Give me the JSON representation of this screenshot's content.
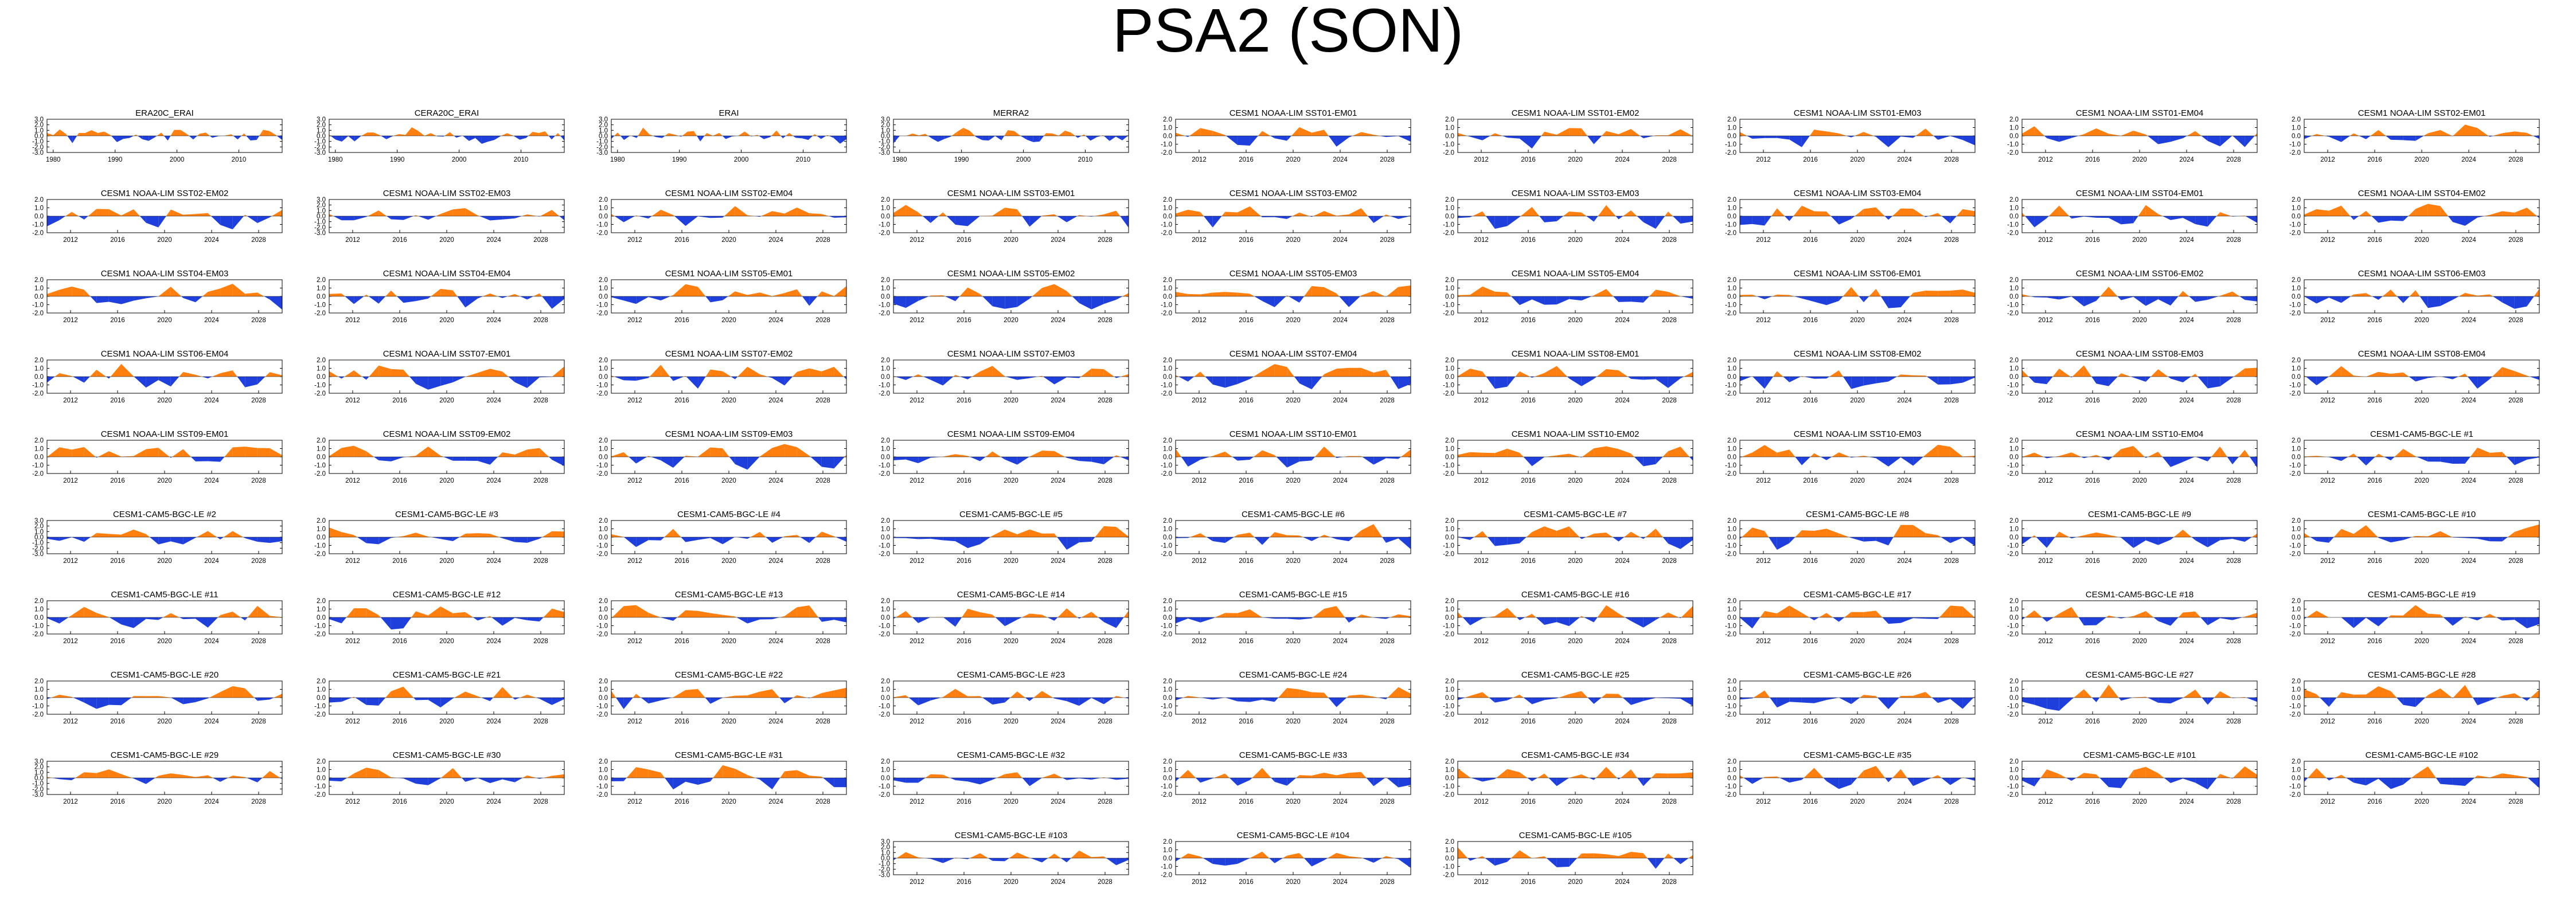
{
  "page": {
    "title": "PSA2 (SON)"
  },
  "colors": {
    "positive": "#ff7f0e",
    "negative": "#1f3fdd",
    "axis": "#000000"
  },
  "chart_data": {
    "type": "area",
    "description_axis": "each panel: SON-season PSA2 index time series, anomalies above zero filled orange, below zero filled blue",
    "ylim": [
      -2.0,
      2.0
    ],
    "yticks": [
      "2.0",
      "1.0",
      "0.0",
      "-1.0",
      "-2.0"
    ],
    "ylim_alt": [
      -3.0,
      3.0
    ],
    "yticks_alt": [
      "3.0",
      "2.0",
      "1.0",
      "0.0",
      "-1.0",
      "-2.0",
      "-3.0"
    ],
    "xticks_reanalysis": [
      "1980",
      "1990",
      "2000",
      "2010"
    ],
    "xticks_model": [
      "2012",
      "2016",
      "2020",
      "2024",
      "2028"
    ],
    "panels": [
      {
        "title": "ERA20C_ERAI",
        "xkind": "reanalysis",
        "ykind": "alt",
        "seed": 1
      },
      {
        "title": "CERA20C_ERAI",
        "xkind": "reanalysis",
        "ykind": "alt",
        "seed": 2
      },
      {
        "title": "ERAI",
        "xkind": "reanalysis",
        "ykind": "alt",
        "seed": 3
      },
      {
        "title": "MERRA2",
        "xkind": "reanalysis",
        "ykind": "alt",
        "seed": 4
      },
      {
        "title": "CESM1 NOAA-LIM SST01-EM01",
        "xkind": "model",
        "ykind": "std",
        "seed": 5
      },
      {
        "title": "CESM1 NOAA-LIM SST01-EM02",
        "xkind": "model",
        "ykind": "std",
        "seed": 6
      },
      {
        "title": "CESM1 NOAA-LIM SST01-EM03",
        "xkind": "model",
        "ykind": "std",
        "seed": 7
      },
      {
        "title": "CESM1 NOAA-LIM SST01-EM04",
        "xkind": "model",
        "ykind": "std",
        "seed": 8
      },
      {
        "title": "CESM1 NOAA-LIM SST02-EM01",
        "xkind": "model",
        "ykind": "std",
        "seed": 9
      },
      {
        "title": "CESM1 NOAA-LIM SST02-EM02",
        "xkind": "model",
        "ykind": "std",
        "seed": 10
      },
      {
        "title": "CESM1 NOAA-LIM SST02-EM03",
        "xkind": "model",
        "ykind": "alt",
        "seed": 11
      },
      {
        "title": "CESM1 NOAA-LIM SST02-EM04",
        "xkind": "model",
        "ykind": "std",
        "seed": 12
      },
      {
        "title": "CESM1 NOAA-LIM SST03-EM01",
        "xkind": "model",
        "ykind": "std",
        "seed": 13
      },
      {
        "title": "CESM1 NOAA-LIM SST03-EM02",
        "xkind": "model",
        "ykind": "std",
        "seed": 14
      },
      {
        "title": "CESM1 NOAA-LIM SST03-EM03",
        "xkind": "model",
        "ykind": "std",
        "seed": 15
      },
      {
        "title": "CESM1 NOAA-LIM SST03-EM04",
        "xkind": "model",
        "ykind": "std",
        "seed": 16
      },
      {
        "title": "CESM1 NOAA-LIM SST04-EM01",
        "xkind": "model",
        "ykind": "std",
        "seed": 17
      },
      {
        "title": "CESM1 NOAA-LIM SST04-EM02",
        "xkind": "model",
        "ykind": "std",
        "seed": 18
      },
      {
        "title": "CESM1 NOAA-LIM SST04-EM03",
        "xkind": "model",
        "ykind": "std",
        "seed": 19
      },
      {
        "title": "CESM1 NOAA-LIM SST04-EM04",
        "xkind": "model",
        "ykind": "std",
        "seed": 20
      },
      {
        "title": "CESM1 NOAA-LIM SST05-EM01",
        "xkind": "model",
        "ykind": "std",
        "seed": 21
      },
      {
        "title": "CESM1 NOAA-LIM SST05-EM02",
        "xkind": "model",
        "ykind": "std",
        "seed": 22
      },
      {
        "title": "CESM1 NOAA-LIM SST05-EM03",
        "xkind": "model",
        "ykind": "std",
        "seed": 23
      },
      {
        "title": "CESM1 NOAA-LIM SST05-EM04",
        "xkind": "model",
        "ykind": "std",
        "seed": 24
      },
      {
        "title": "CESM1 NOAA-LIM SST06-EM01",
        "xkind": "model",
        "ykind": "std",
        "seed": 25
      },
      {
        "title": "CESM1 NOAA-LIM SST06-EM02",
        "xkind": "model",
        "ykind": "std",
        "seed": 26
      },
      {
        "title": "CESM1 NOAA-LIM SST06-EM03",
        "xkind": "model",
        "ykind": "std",
        "seed": 27
      },
      {
        "title": "CESM1 NOAA-LIM SST06-EM04",
        "xkind": "model",
        "ykind": "std",
        "seed": 28
      },
      {
        "title": "CESM1 NOAA-LIM SST07-EM01",
        "xkind": "model",
        "ykind": "std",
        "seed": 29
      },
      {
        "title": "CESM1 NOAA-LIM SST07-EM02",
        "xkind": "model",
        "ykind": "std",
        "seed": 30
      },
      {
        "title": "CESM1 NOAA-LIM SST07-EM03",
        "xkind": "model",
        "ykind": "std",
        "seed": 31
      },
      {
        "title": "CESM1 NOAA-LIM SST07-EM04",
        "xkind": "model",
        "ykind": "std",
        "seed": 32
      },
      {
        "title": "CESM1 NOAA-LIM SST08-EM01",
        "xkind": "model",
        "ykind": "std",
        "seed": 33
      },
      {
        "title": "CESM1 NOAA-LIM SST08-EM02",
        "xkind": "model",
        "ykind": "std",
        "seed": 34
      },
      {
        "title": "CESM1 NOAA-LIM SST08-EM03",
        "xkind": "model",
        "ykind": "std",
        "seed": 35
      },
      {
        "title": "CESM1 NOAA-LIM SST08-EM04",
        "xkind": "model",
        "ykind": "std",
        "seed": 36
      },
      {
        "title": "CESM1 NOAA-LIM SST09-EM01",
        "xkind": "model",
        "ykind": "std",
        "seed": 37
      },
      {
        "title": "CESM1 NOAA-LIM SST09-EM02",
        "xkind": "model",
        "ykind": "std",
        "seed": 38
      },
      {
        "title": "CESM1 NOAA-LIM SST09-EM03",
        "xkind": "model",
        "ykind": "std",
        "seed": 39
      },
      {
        "title": "CESM1 NOAA-LIM SST09-EM04",
        "xkind": "model",
        "ykind": "std",
        "seed": 40
      },
      {
        "title": "CESM1 NOAA-LIM SST10-EM01",
        "xkind": "model",
        "ykind": "std",
        "seed": 41
      },
      {
        "title": "CESM1 NOAA-LIM SST10-EM02",
        "xkind": "model",
        "ykind": "std",
        "seed": 42
      },
      {
        "title": "CESM1 NOAA-LIM SST10-EM03",
        "xkind": "model",
        "ykind": "std",
        "seed": 43
      },
      {
        "title": "CESM1 NOAA-LIM SST10-EM04",
        "xkind": "model",
        "ykind": "std",
        "seed": 44
      },
      {
        "title": "CESM1-CAM5-BGC-LE #1",
        "xkind": "model",
        "ykind": "std",
        "seed": 45
      },
      {
        "title": "CESM1-CAM5-BGC-LE #2",
        "xkind": "model",
        "ykind": "alt",
        "seed": 46
      },
      {
        "title": "CESM1-CAM5-BGC-LE #3",
        "xkind": "model",
        "ykind": "std",
        "seed": 47
      },
      {
        "title": "CESM1-CAM5-BGC-LE #4",
        "xkind": "model",
        "ykind": "std",
        "seed": 48
      },
      {
        "title": "CESM1-CAM5-BGC-LE #5",
        "xkind": "model",
        "ykind": "std",
        "seed": 49
      },
      {
        "title": "CESM1-CAM5-BGC-LE #6",
        "xkind": "model",
        "ykind": "std",
        "seed": 50
      },
      {
        "title": "CESM1-CAM5-BGC-LE #7",
        "xkind": "model",
        "ykind": "std",
        "seed": 51
      },
      {
        "title": "CESM1-CAM5-BGC-LE #8",
        "xkind": "model",
        "ykind": "std",
        "seed": 52
      },
      {
        "title": "CESM1-CAM5-BGC-LE #9",
        "xkind": "model",
        "ykind": "std",
        "seed": 53
      },
      {
        "title": "CESM1-CAM5-BGC-LE #10",
        "xkind": "model",
        "ykind": "std",
        "seed": 54
      },
      {
        "title": "CESM1-CAM5-BGC-LE #11",
        "xkind": "model",
        "ykind": "std",
        "seed": 55
      },
      {
        "title": "CESM1-CAM5-BGC-LE #12",
        "xkind": "model",
        "ykind": "std",
        "seed": 56
      },
      {
        "title": "CESM1-CAM5-BGC-LE #13",
        "xkind": "model",
        "ykind": "std",
        "seed": 57
      },
      {
        "title": "CESM1-CAM5-BGC-LE #14",
        "xkind": "model",
        "ykind": "std",
        "seed": 58
      },
      {
        "title": "CESM1-CAM5-BGC-LE #15",
        "xkind": "model",
        "ykind": "std",
        "seed": 59
      },
      {
        "title": "CESM1-CAM5-BGC-LE #16",
        "xkind": "model",
        "ykind": "std",
        "seed": 60
      },
      {
        "title": "CESM1-CAM5-BGC-LE #17",
        "xkind": "model",
        "ykind": "std",
        "seed": 61
      },
      {
        "title": "CESM1-CAM5-BGC-LE #18",
        "xkind": "model",
        "ykind": "std",
        "seed": 62
      },
      {
        "title": "CESM1-CAM5-BGC-LE #19",
        "xkind": "model",
        "ykind": "std",
        "seed": 63
      },
      {
        "title": "CESM1-CAM5-BGC-LE #20",
        "xkind": "model",
        "ykind": "std",
        "seed": 64
      },
      {
        "title": "CESM1-CAM5-BGC-LE #21",
        "xkind": "model",
        "ykind": "std",
        "seed": 65
      },
      {
        "title": "CESM1-CAM5-BGC-LE #22",
        "xkind": "model",
        "ykind": "std",
        "seed": 66
      },
      {
        "title": "CESM1-CAM5-BGC-LE #23",
        "xkind": "model",
        "ykind": "std",
        "seed": 67
      },
      {
        "title": "CESM1-CAM5-BGC-LE #24",
        "xkind": "model",
        "ykind": "std",
        "seed": 68
      },
      {
        "title": "CESM1-CAM5-BGC-LE #25",
        "xkind": "model",
        "ykind": "std",
        "seed": 69
      },
      {
        "title": "CESM1-CAM5-BGC-LE #26",
        "xkind": "model",
        "ykind": "std",
        "seed": 70
      },
      {
        "title": "CESM1-CAM5-BGC-LE #27",
        "xkind": "model",
        "ykind": "std",
        "seed": 71
      },
      {
        "title": "CESM1-CAM5-BGC-LE #28",
        "xkind": "model",
        "ykind": "std",
        "seed": 72
      },
      {
        "title": "CESM1-CAM5-BGC-LE #29",
        "xkind": "model",
        "ykind": "alt",
        "seed": 73
      },
      {
        "title": "CESM1-CAM5-BGC-LE #30",
        "xkind": "model",
        "ykind": "std",
        "seed": 74
      },
      {
        "title": "CESM1-CAM5-BGC-LE #31",
        "xkind": "model",
        "ykind": "std",
        "seed": 75
      },
      {
        "title": "CESM1-CAM5-BGC-LE #32",
        "xkind": "model",
        "ykind": "std",
        "seed": 76
      },
      {
        "title": "CESM1-CAM5-BGC-LE #33",
        "xkind": "model",
        "ykind": "std",
        "seed": 77
      },
      {
        "title": "CESM1-CAM5-BGC-LE #34",
        "xkind": "model",
        "ykind": "std",
        "seed": 78
      },
      {
        "title": "CESM1-CAM5-BGC-LE #35",
        "xkind": "model",
        "ykind": "std",
        "seed": 79
      },
      {
        "title": "CESM1-CAM5-BGC-LE #101",
        "xkind": "model",
        "ykind": "std",
        "seed": 80
      },
      {
        "title": "CESM1-CAM5-BGC-LE #102",
        "xkind": "model",
        "ykind": "std",
        "seed": 81
      },
      {
        "title": "CESM1-CAM5-BGC-LE #103",
        "xkind": "model",
        "ykind": "alt",
        "seed": 82
      },
      {
        "title": "CESM1-CAM5-BGC-LE #104",
        "xkind": "model",
        "ykind": "std",
        "seed": 83
      },
      {
        "title": "CESM1-CAM5-BGC-LE #105",
        "xkind": "model",
        "ykind": "std",
        "seed": 84
      }
    ]
  }
}
